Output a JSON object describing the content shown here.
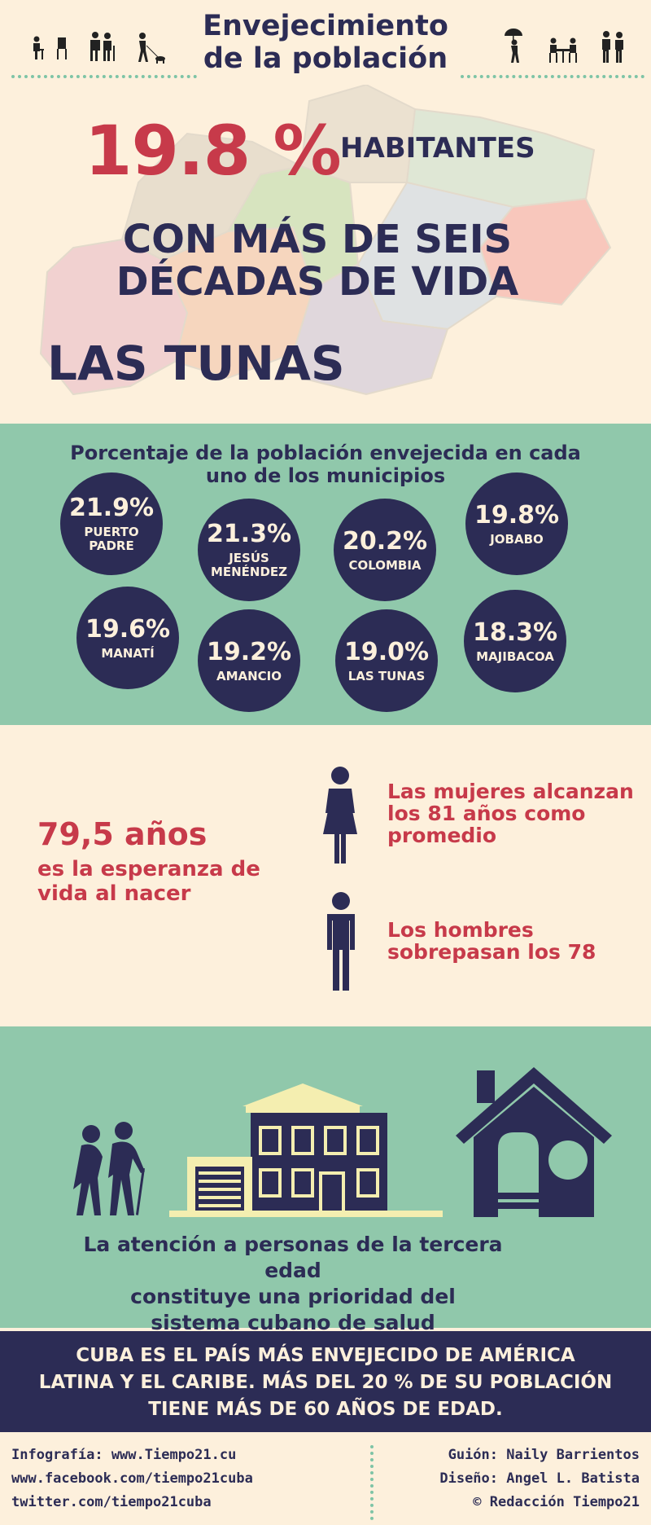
{
  "header": {
    "title_line1": "Envejecimiento",
    "title_line2": "de la población",
    "icons_left": [
      "seated-elder-icon",
      "painter-easel-icon",
      "elder-couple-icon",
      "walking-dog-icon"
    ],
    "icons_right": [
      "umbrella-walker-icon",
      "table-chairs-icon",
      "walking-pair-icon"
    ]
  },
  "hero": {
    "percent": "19.8 %",
    "habitantes": "HABITANTES",
    "decadas_line1": "CON MÁS DE SEIS",
    "decadas_line2": "DÉCADAS DE VIDA",
    "province": "LAS TUNAS",
    "map_icon": "province-map-icon"
  },
  "municipios": {
    "title_line1": "Porcentaje de la población envejecida en cada",
    "title_line2": "uno de los municipios",
    "items": [
      {
        "pct": "21.9%",
        "name": "PUERTO PADRE",
        "value": 21.9
      },
      {
        "pct": "21.3%",
        "name": "JESÚS MENÉNDEZ",
        "value": 21.3
      },
      {
        "pct": "20.2%",
        "name": "COLOMBIA",
        "value": 20.2
      },
      {
        "pct": "19.8%",
        "name": "JOBABO",
        "value": 19.8
      },
      {
        "pct": "19.6%",
        "name": "MANATÍ",
        "value": 19.6
      },
      {
        "pct": "19.2%",
        "name": "AMANCIO",
        "value": 19.2
      },
      {
        "pct": "19.0%",
        "name": "LAS TUNAS",
        "value": 19.0
      },
      {
        "pct": "18.3%",
        "name": "MAJIBACOA",
        "value": 18.3
      }
    ]
  },
  "life": {
    "years": "79,5 años",
    "subtitle_line1": "es la esperanza de",
    "subtitle_line2": "vida al nacer",
    "women_line1": "Las mujeres alcanzan",
    "women_line2": "los 81 años como",
    "women_line3": "promedio",
    "men_line1": "Los hombres",
    "men_line2": "sobrepasan los 78",
    "women_icon": "woman-icon",
    "men_icon": "man-icon"
  },
  "care": {
    "line1": "La atención a personas de la tercera edad",
    "line2": "constituye una prioridad del",
    "line3": "sistema cubano de salud",
    "icons": [
      "elderly-couple-icon",
      "hospital-building-icon",
      "home-icon"
    ]
  },
  "banner": {
    "line1": "CUBA ES EL PAÍS MÁS ENVEJECIDO DE AMÉRICA",
    "line2": "LATINA Y EL CARIBE. MÁS DEL 20 % DE SU POBLACIÓN",
    "line3": "TIENE MÁS DE 60 AÑOS DE EDAD."
  },
  "footer": {
    "left": [
      "Infografía: www.Tiempo21.cu",
      "www.facebook.com/tiempo21cuba",
      "twitter.com/tiempo21cuba"
    ],
    "right": [
      "Guión: Naily Barrientos",
      "Diseño: Angel L. Batista",
      "© Redacción Tiempo21"
    ]
  },
  "colors": {
    "navy": "#2c2c55",
    "red": "#c73a4a",
    "cream": "#fdf0dc",
    "green": "#90c8ab",
    "yellow": "#f4eeb0"
  }
}
